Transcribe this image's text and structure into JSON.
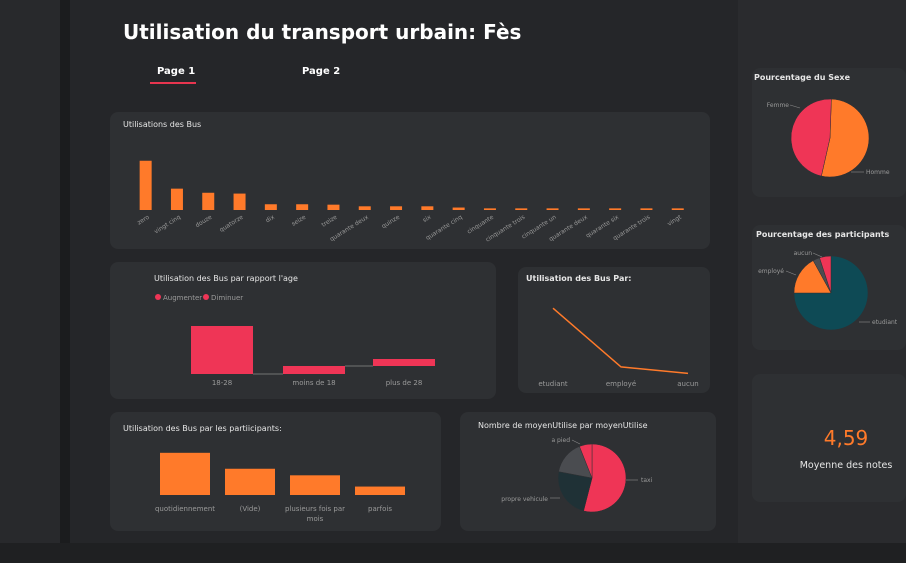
{
  "header": {
    "title": "Utilisation du transport urbain: Fès",
    "tabs": [
      {
        "label": "Page 1",
        "active": true
      },
      {
        "label": "Page 2",
        "active": false
      }
    ]
  },
  "colors": {
    "orange": "#ff7a2a",
    "red": "#ef3556",
    "teal": "#0e4a55",
    "gray": "#4a4c50",
    "dark": "#1f3136"
  },
  "cards": {
    "bus": {
      "title": "Utilisations des Bus"
    },
    "age": {
      "title": "Utilisation des Bus par rapport l'age",
      "legend_up": "Augmenter",
      "legend_down": "Diminuer"
    },
    "par": {
      "title": "Utilisation des Bus Par:"
    },
    "participants": {
      "title": "Utilisation des Bus par les partiicipants:"
    },
    "moyen": {
      "title": "Nombre de moyenUtilise par moyenUtilise"
    },
    "sexe": {
      "title": "Pourcentage du Sexe"
    },
    "pct_participants": {
      "title": "Pourcentage des participants"
    },
    "kpi": {
      "value": "4,59",
      "label": "Moyenne des notes"
    }
  },
  "chart_data": [
    {
      "type": "bar",
      "title": "Utilisations des Bus",
      "categories": [
        "zero",
        "vingt cinq",
        "douze",
        "quatorze",
        "dix",
        "seize",
        "treize",
        "quarante deux",
        "quinze",
        "six",
        "quarante cinq",
        "cinquante",
        "cinquante trois",
        "cinquante un",
        "quarante deux",
        "quarante six",
        "quarante trois",
        "vingt"
      ],
      "values": [
        12,
        5.2,
        4.2,
        4.0,
        1.4,
        1.4,
        1.3,
        0.9,
        0.9,
        0.9,
        0.6,
        0.4,
        0.4,
        0.4,
        0.4,
        0.4,
        0.4,
        0.4
      ],
      "ylim": [
        0,
        13
      ]
    },
    {
      "type": "bar",
      "subtype": "waterfall",
      "title": "Utilisation des Bus par rapport l'age",
      "categories": [
        "18-28",
        "moins de 18",
        "plus de 28"
      ],
      "values": [
        -48,
        8,
        7
      ],
      "legend": [
        "Augmenter",
        "Diminuer"
      ]
    },
    {
      "type": "line",
      "title": "Utilisation des Bus Par:",
      "categories": [
        "etudiant",
        "employé",
        "aucun"
      ],
      "values": [
        75,
        11,
        4
      ],
      "ylim": [
        0,
        85
      ]
    },
    {
      "type": "bar",
      "title": "Utilisation des Bus par les partiicipants:",
      "categories": [
        "quotidiennement",
        "(Vide)",
        "plusieurs fois par mois",
        "parfois"
      ],
      "values": [
        45,
        28,
        21,
        9
      ],
      "ylim": [
        0,
        48
      ]
    },
    {
      "type": "pie",
      "title": "Nombre de moyenUtilise par moyenUtilise",
      "slices": [
        {
          "label": "taxi",
          "value": 54
        },
        {
          "label": "propre vehicule",
          "value": 24
        },
        {
          "label": "a pied",
          "value": 16
        },
        {
          "label": "",
          "value": 6
        }
      ]
    },
    {
      "type": "pie",
      "title": "Pourcentage du Sexe",
      "slices": [
        {
          "label": "Homme",
          "value": 53
        },
        {
          "label": "Femme",
          "value": 47
        }
      ]
    },
    {
      "type": "pie",
      "title": "Pourcentage des participants",
      "slices": [
        {
          "label": "etudiant",
          "value": 75
        },
        {
          "label": "employé",
          "value": 17
        },
        {
          "label": "",
          "value": 3
        },
        {
          "label": "aucun",
          "value": 5
        }
      ]
    }
  ]
}
